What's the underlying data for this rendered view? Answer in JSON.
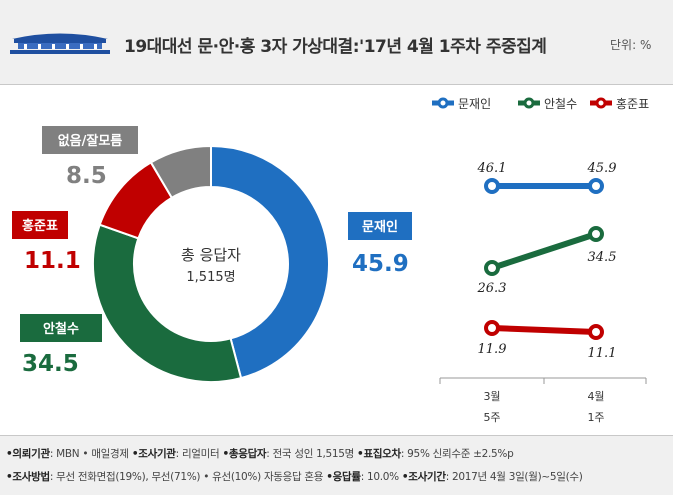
{
  "header": {
    "title": "19대대선 문·안·홍 3자 가상대결:'17년 4월 1주차 주중집계",
    "unit": "단위: %"
  },
  "colors": {
    "moon": "#1f6fc1",
    "ahn": "#1a6b3e",
    "hong": "#c00000",
    "unknown": "#808080"
  },
  "chart_data": [
    {
      "type": "pie",
      "donut": true,
      "center_label": "총 응답자",
      "center_value": "1,515명",
      "slices": [
        {
          "label": "문재인",
          "value": 45.9,
          "value_text": "45.9",
          "color": "#1f6fc1"
        },
        {
          "label": "안철수",
          "value": 34.5,
          "value_text": "34.5",
          "color": "#1a6b3e"
        },
        {
          "label": "홍준표",
          "value": 11.1,
          "value_text": "11.1",
          "color": "#c00000"
        },
        {
          "label": "없음/잘모름",
          "value": 8.5,
          "value_text": "8.5",
          "color": "#808080"
        }
      ]
    },
    {
      "type": "line",
      "categories": [
        {
          "line1": "3월",
          "line2": "5주"
        },
        {
          "line1": "4월",
          "line2": "1주"
        }
      ],
      "legend_position": "top-right",
      "series": [
        {
          "name": "문재인",
          "color": "#1f6fc1",
          "values": [
            46.1,
            45.9
          ],
          "labels": [
            "46.1",
            "45.9"
          ]
        },
        {
          "name": "안철수",
          "color": "#1a6b3e",
          "values": [
            26.3,
            34.5
          ],
          "labels": [
            "26.3",
            "34.5"
          ]
        },
        {
          "name": "홍준표",
          "color": "#c00000",
          "values": [
            11.9,
            11.1
          ],
          "labels": [
            "11.9",
            "11.1"
          ]
        }
      ]
    }
  ],
  "footer": {
    "line1": [
      {
        "key": "•의뢰기관",
        "val": ": MBN • 매일경제  "
      },
      {
        "key": "•조사기관",
        "val": ": 리얼미터  "
      },
      {
        "key": "•총응답자",
        "val": ": 전국 성인 1,515명  "
      },
      {
        "key": "•표집오차",
        "val": ": 95% 신뢰수준 ±2.5%p"
      }
    ],
    "line2": [
      {
        "key": "•조사방법",
        "val": ": 무선 전화면접(19%), 무선(71%) • 유선(10%) 자동응답 혼용 "
      },
      {
        "key": "•응답률",
        "val": ": 10.0% "
      },
      {
        "key": "•조사기간",
        "val": ": 2017년 4월 3일(월)~5일(수)"
      }
    ]
  }
}
